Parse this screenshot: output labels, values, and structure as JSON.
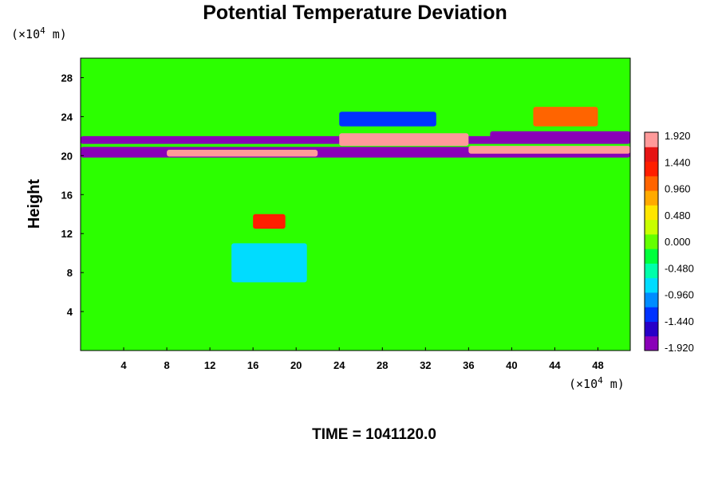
{
  "chart_data": {
    "type": "heatmap",
    "title": "Potential Temperature Deviation",
    "ylabel": "Height",
    "x_unit_prefix": "(×10",
    "x_unit_exp": "4",
    "x_unit_suffix": " m)",
    "y_unit_prefix": "(×10",
    "y_unit_exp": "4",
    "y_unit_suffix": " m)",
    "xlim": [
      0,
      51
    ],
    "ylim": [
      0,
      30
    ],
    "x_ticks": [
      "4",
      "8",
      "12",
      "16",
      "20",
      "24",
      "28",
      "32",
      "36",
      "40",
      "44",
      "48"
    ],
    "y_ticks": [
      "4",
      "8",
      "12",
      "16",
      "20",
      "24",
      "28"
    ],
    "colorbar": {
      "min": -1.92,
      "max": 1.92,
      "tick_labels": [
        "1.920",
        "1.440",
        "0.960",
        "0.480",
        "0.000",
        "-0.480",
        "-0.960",
        "-1.440",
        "-1.920"
      ],
      "colors": [
        "#8a00b8",
        "#2800c8",
        "#0032ff",
        "#008cff",
        "#00dcff",
        "#00ffaa",
        "#00ff3c",
        "#64ff00",
        "#c8ff00",
        "#ffe600",
        "#ffaa00",
        "#ff6400",
        "#ff1e00",
        "#e61414",
        "#ff9a9a"
      ]
    },
    "background_value": 0.0,
    "features": [
      {
        "label": "upper-purple-band",
        "x": [
          0,
          51
        ],
        "y": [
          21.2,
          22.0
        ],
        "value": -1.92
      },
      {
        "label": "lower-purple-band",
        "x": [
          0,
          51
        ],
        "y": [
          19.8,
          20.9
        ],
        "value": -1.92
      },
      {
        "label": "warm-band-left",
        "x": [
          8,
          22
        ],
        "y": [
          19.9,
          20.6
        ],
        "value": 1.92
      },
      {
        "label": "warm-band-center",
        "x": [
          24,
          36
        ],
        "y": [
          21.0,
          22.3
        ],
        "value": 1.92
      },
      {
        "label": "warm-band-right",
        "x": [
          36,
          51
        ],
        "y": [
          20.2,
          21.0
        ],
        "value": 1.92
      },
      {
        "label": "cold-patch-right",
        "x": [
          38,
          51
        ],
        "y": [
          21.6,
          22.5
        ],
        "value": -1.92
      },
      {
        "label": "cool-patch-upper",
        "x": [
          24,
          33
        ],
        "y": [
          23.0,
          24.5
        ],
        "value": -1.44
      },
      {
        "label": "warm-patch-upper-right",
        "x": [
          42,
          48
        ],
        "y": [
          23.0,
          25.0
        ],
        "value": 0.96
      },
      {
        "label": "warm-blob-mid",
        "x": [
          16,
          19
        ],
        "y": [
          12.5,
          14.0
        ],
        "value": 1.44
      },
      {
        "label": "cool-plume-mid",
        "x": [
          14,
          21
        ],
        "y": [
          7.0,
          11.0
        ],
        "value": -0.96
      }
    ]
  },
  "time_label": "TIME = 1041120.0"
}
